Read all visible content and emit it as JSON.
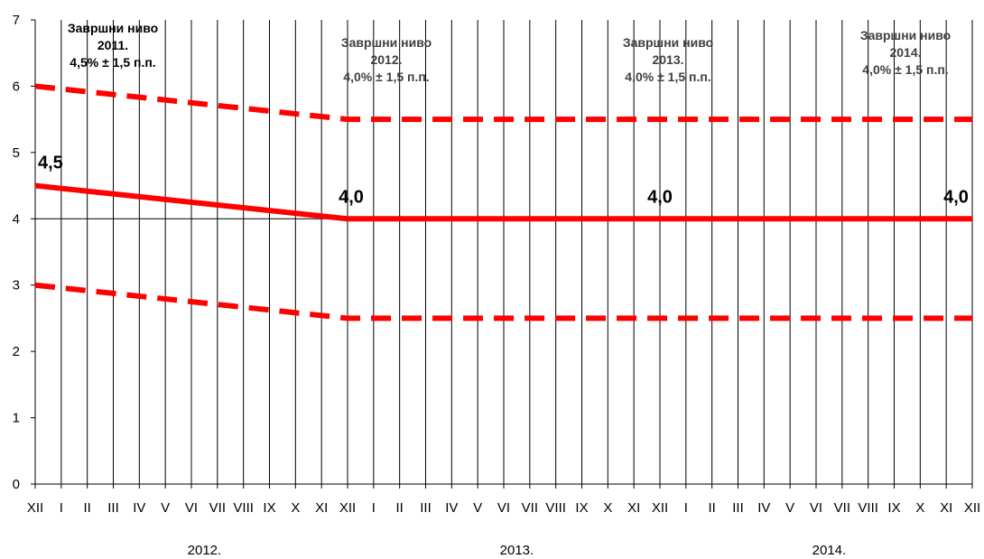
{
  "chart_data": {
    "type": "line",
    "categories": [
      "XII",
      "I",
      "II",
      "III",
      "IV",
      "V",
      "VI",
      "VII",
      "VIII",
      "IX",
      "X",
      "XI",
      "XII",
      "I",
      "II",
      "III",
      "IV",
      "V",
      "VI",
      "VII",
      "VIII",
      "IX",
      "X",
      "XI",
      "XII",
      "I",
      "II",
      "III",
      "IV",
      "V",
      "VI",
      "VII",
      "VIII",
      "IX",
      "X",
      "XI",
      "XII"
    ],
    "years": [
      {
        "label": "2012.",
        "center_index": 6.5
      },
      {
        "label": "2013.",
        "center_index": 18.5
      },
      {
        "label": "2014.",
        "center_index": 30.5
      }
    ],
    "ylim": [
      0,
      7
    ],
    "yticks": [
      "0",
      "1",
      "2",
      "3",
      "4",
      "5",
      "6",
      "7"
    ],
    "grid": "vertical lines at every month; horizontal line at y=4",
    "series": [
      {
        "style": "solid",
        "color": "#ff0000",
        "points": [
          [
            0,
            4.5
          ],
          [
            12,
            4.0
          ],
          [
            36,
            4.0
          ]
        ]
      },
      {
        "style": "dashed",
        "color": "#ff0000",
        "points": [
          [
            0,
            6.0
          ],
          [
            12,
            5.5
          ],
          [
            36,
            5.5
          ]
        ]
      },
      {
        "style": "dashed",
        "color": "#ff0000",
        "points": [
          [
            0,
            3.0
          ],
          [
            12,
            2.5
          ],
          [
            36,
            2.5
          ]
        ]
      }
    ],
    "value_labels": [
      {
        "text": "4,5",
        "index": 0,
        "value": 4.5
      },
      {
        "text": "4,0",
        "index": 12,
        "value": 4.0
      },
      {
        "text": "4,0",
        "index": 24,
        "value": 4.0
      },
      {
        "text": "4,0",
        "index": 36,
        "value": 4.0
      }
    ],
    "annotations": [
      {
        "lines": [
          "Завршни ниво",
          "2011.",
          "4,5% ± 1,5 п.п."
        ],
        "color": "#000000"
      },
      {
        "lines": [
          "Завршни ниво",
          "2012.",
          "4,0% ± 1,5 п.п."
        ],
        "color": "#404040"
      },
      {
        "lines": [
          "Завршни ниво",
          "2013.",
          "4,0% ± 1,5 п.п."
        ],
        "color": "#404040"
      },
      {
        "lines": [
          "Завршни ниво",
          "2014.",
          "4,0% ± 1,5 п.п."
        ],
        "color": "#404040"
      }
    ]
  }
}
